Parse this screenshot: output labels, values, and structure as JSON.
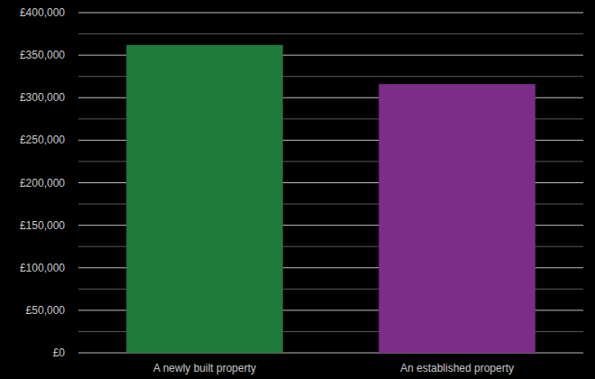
{
  "chart_data": {
    "type": "bar",
    "categories": [
      "A newly built property",
      "An established property"
    ],
    "values": [
      362000,
      316000
    ],
    "colors": [
      "#1e7b3a",
      "#7b2d88"
    ],
    "ylim": [
      0,
      400000
    ],
    "yticks": [
      {
        "value": 0,
        "label": "£0"
      },
      {
        "value": 50000,
        "label": "£50,000"
      },
      {
        "value": 100000,
        "label": "£100,000"
      },
      {
        "value": 150000,
        "label": "£150,000"
      },
      {
        "value": 200000,
        "label": "£200,000"
      },
      {
        "value": 250000,
        "label": "£250,000"
      },
      {
        "value": 300000,
        "label": "£300,000"
      },
      {
        "value": 350000,
        "label": "£350,000"
      },
      {
        "value": 400000,
        "label": "£400,000"
      }
    ],
    "grid": true
  }
}
